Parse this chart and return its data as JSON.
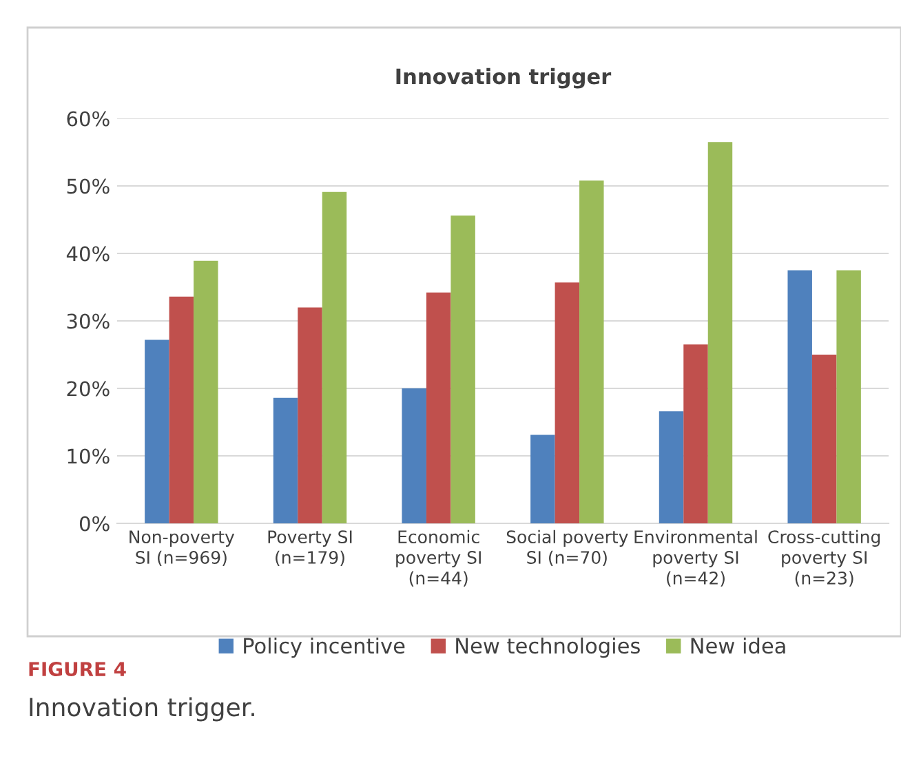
{
  "chart_data": {
    "type": "bar",
    "title": "Innovation trigger",
    "categories": [
      "Non-poverty\nSI (n=969)",
      "Poverty SI\n(n=179)",
      "Economic\npoverty SI\n(n=44)",
      "Social poverty\nSI (n=70)",
      "Environmental\npoverty SI\n(n=42)",
      "Cross-cutting\npoverty SI\n(n=23)"
    ],
    "series": [
      {
        "name": "Policy incentive",
        "color": "#4f81bd",
        "values": [
          27.2,
          18.6,
          20.0,
          13.1,
          16.6,
          37.5
        ]
      },
      {
        "name": "New technologies",
        "color": "#c0504d",
        "values": [
          33.6,
          32.0,
          34.2,
          35.7,
          26.5,
          25.0
        ]
      },
      {
        "name": "New idea",
        "color": "#9bbb59",
        "values": [
          38.9,
          49.1,
          45.6,
          50.8,
          56.5,
          37.5
        ]
      }
    ],
    "ylim": [
      0,
      60
    ],
    "yticks": [
      {
        "value": 0,
        "label": "0%"
      },
      {
        "value": 10,
        "label": "10%"
      },
      {
        "value": 20,
        "label": "20%"
      },
      {
        "value": 30,
        "label": "30%"
      },
      {
        "value": 40,
        "label": "40%"
      },
      {
        "value": 50,
        "label": "50%"
      },
      {
        "value": 60,
        "label": "60%"
      }
    ],
    "grid": "y",
    "legend": "bottom",
    "annotations": [
      "FIGURE 4",
      "Innovation trigger."
    ]
  }
}
